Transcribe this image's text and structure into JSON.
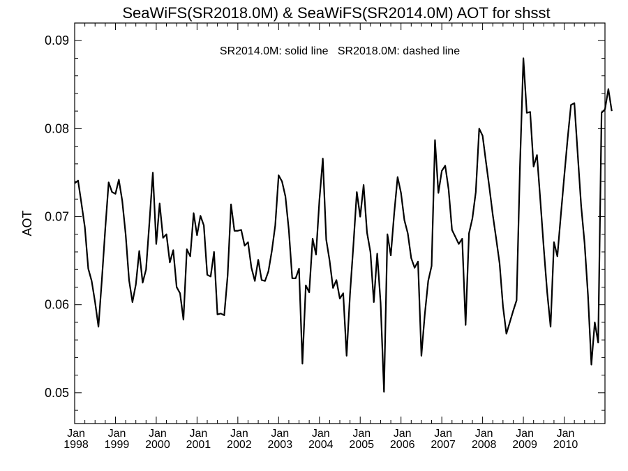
{
  "chart_data": {
    "type": "line",
    "title": "SeaWiFS(SR2018.0M) & SeaWiFS(SR2014.0M)  AOT for shsst",
    "annotation": "SR2014.0M: solid line   SR2018.0M: dashed line",
    "xlabel": "",
    "ylabel": "AOT",
    "xlim": [
      "1998-01",
      "2010-12"
    ],
    "ylim": [
      0.0465,
      0.092
    ],
    "yticks": [
      0.05,
      0.06,
      0.07,
      0.08,
      0.09
    ],
    "ytick_labels": [
      "0.05",
      "0.06",
      "0.07",
      "0.08",
      "0.09"
    ],
    "xtick_months": [
      "Jan",
      "Jan",
      "Jan",
      "Jan",
      "Jan",
      "Jan",
      "Jan",
      "Jan",
      "Jan",
      "Jan",
      "Jan",
      "Jan",
      "Jan"
    ],
    "xtick_years": [
      "1998",
      "1999",
      "2000",
      "2001",
      "2002",
      "2003",
      "2004",
      "2005",
      "2006",
      "2007",
      "2008",
      "2009",
      "2010"
    ],
    "grid": false,
    "series": [
      {
        "name": "SR2014.0M",
        "style": "solid",
        "color": "#000000",
        "x_start": "1998-01",
        "x_step": "1 month",
        "values": [
          0.0738,
          0.0741,
          0.0715,
          0.0688,
          0.0641,
          0.0627,
          0.0603,
          0.0575,
          0.0628,
          0.0686,
          0.0739,
          0.0728,
          0.0726,
          0.0742,
          0.0718,
          0.068,
          0.0628,
          0.0603,
          0.0623,
          0.0661,
          0.0625,
          0.064,
          0.0694,
          0.075,
          0.0669,
          0.0715,
          0.0676,
          0.068,
          0.0648,
          0.0662,
          0.062,
          0.0613,
          0.0583,
          0.0663,
          0.0655,
          0.0704,
          0.0679,
          0.0701,
          0.069,
          0.0634,
          0.0632,
          0.066,
          0.0589,
          0.059,
          0.0588,
          0.0633,
          0.0714,
          0.0684,
          0.0684,
          0.0685,
          0.0667,
          0.0671,
          0.0642,
          0.0627,
          0.0651,
          0.0628,
          0.0627,
          0.0638,
          0.0661,
          0.069,
          0.0747,
          0.074,
          0.0723,
          0.0685,
          0.063,
          0.063,
          0.0641,
          0.0533,
          0.0622,
          0.0614,
          0.0675,
          0.0657,
          0.0719,
          0.0766,
          0.0674,
          0.065,
          0.0619,
          0.0628,
          0.0607,
          0.0613,
          0.0542,
          0.0612,
          0.0668,
          0.0728,
          0.07,
          0.0736,
          0.0682,
          0.066,
          0.0603,
          0.0658,
          0.0602,
          0.0501,
          0.068,
          0.0656,
          0.0704,
          0.0745,
          0.0727,
          0.0696,
          0.0681,
          0.0653,
          0.0642,
          0.0649,
          0.0542,
          0.0589,
          0.0627,
          0.0644,
          0.0787,
          0.0727,
          0.0752,
          0.0758,
          0.0731,
          0.0685,
          0.0677,
          0.0669,
          0.0675,
          0.0577,
          0.0681,
          0.0698,
          0.0728,
          0.08,
          0.0792,
          0.0762,
          0.0733,
          0.0702,
          0.0675,
          0.0647,
          0.0598,
          0.0567,
          0.058,
          0.0593,
          0.0605,
          0.0758,
          0.088,
          0.0818,
          0.0819,
          0.0757,
          0.077,
          0.0718,
          0.0664,
          0.0614,
          0.0575,
          0.0671,
          0.0655,
          0.0701,
          0.0745,
          0.0788,
          0.0827,
          0.0829,
          0.077,
          0.0712,
          0.067,
          0.0611,
          0.0532,
          0.058,
          0.0557,
          0.0818,
          0.0822,
          0.0845,
          0.082
        ]
      }
    ]
  }
}
